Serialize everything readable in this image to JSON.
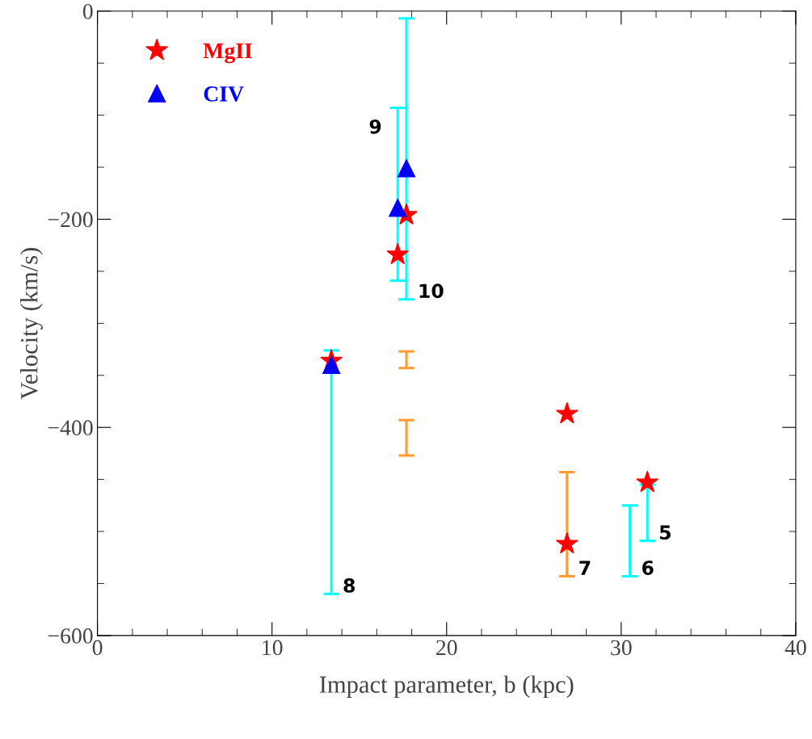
{
  "chart_data": {
    "type": "scatter",
    "xlabel": "Impact parameter, b (kpc)",
    "ylabel": "Velocity (km/s)",
    "xlim": [
      0,
      40
    ],
    "ylim": [
      -600,
      0
    ],
    "xticks": [
      0,
      10,
      20,
      30,
      40
    ],
    "yticks": [
      {
        "value": -600,
        "label": "−600"
      },
      {
        "value": -400,
        "label": "−400"
      },
      {
        "value": -200,
        "label": "−200"
      },
      0
    ],
    "grid": false,
    "legend": "top left",
    "series": [
      {
        "name": "MgII",
        "marker": "star",
        "color": "#ff0000",
        "x": [
          13.4,
          17.2,
          17.7,
          26.9,
          26.9,
          31.5
        ],
        "values": [
          -336,
          -234,
          -196,
          -387,
          -512,
          -453
        ]
      },
      {
        "name": "CIV",
        "marker": "triangle",
        "color": "#0000ff",
        "x": [
          13.4,
          17.2,
          17.7
        ],
        "values": [
          -340,
          -189,
          -151
        ]
      },
      {
        "type": "line",
        "marker": "none",
        "color": "#00ffff",
        "x": [
          13.4,
          13.4
        ],
        "values": [
          -560,
          -326
        ]
      },
      {
        "type": "line",
        "marker": "none",
        "color": "#00ffff",
        "x": [
          17.2,
          17.2
        ],
        "values": [
          -259,
          -93
        ]
      },
      {
        "type": "line",
        "marker": "none",
        "color": "#00ffff",
        "x": [
          17.7,
          17.7
        ],
        "values": [
          -277,
          -7
        ]
      },
      {
        "type": "line",
        "marker": "none",
        "color": "#00ffff",
        "x": [
          30.5,
          30.5
        ],
        "values": [
          -543,
          -475
        ]
      },
      {
        "type": "line",
        "marker": "none",
        "color": "#00ffff",
        "x": [
          31.5,
          31.5
        ],
        "values": [
          -509,
          -455
        ]
      },
      {
        "type": "line",
        "marker": "none",
        "color": "#ff9933",
        "x": [
          17.7,
          17.7
        ],
        "values": [
          -343,
          -327
        ]
      },
      {
        "type": "line",
        "marker": "none",
        "color": "#ff9933",
        "x": [
          17.7,
          17.7
        ],
        "values": [
          -427,
          -393
        ]
      },
      {
        "type": "line",
        "marker": "none",
        "color": "#ff9933",
        "x": [
          26.9,
          26.9
        ],
        "values": [
          -543,
          -443
        ]
      }
    ],
    "annotations": [
      {
        "text": "9",
        "x": 17.2,
        "y": -93
      },
      {
        "text": "10",
        "x": 17.7,
        "y": -277
      },
      {
        "text": "8",
        "x": 13.4,
        "y": -560
      },
      {
        "text": "7",
        "x": 26.9,
        "y": -543
      },
      {
        "text": "6",
        "x": 30.5,
        "y": -543
      },
      {
        "text": "5",
        "x": 31.5,
        "y": -509
      }
    ]
  }
}
